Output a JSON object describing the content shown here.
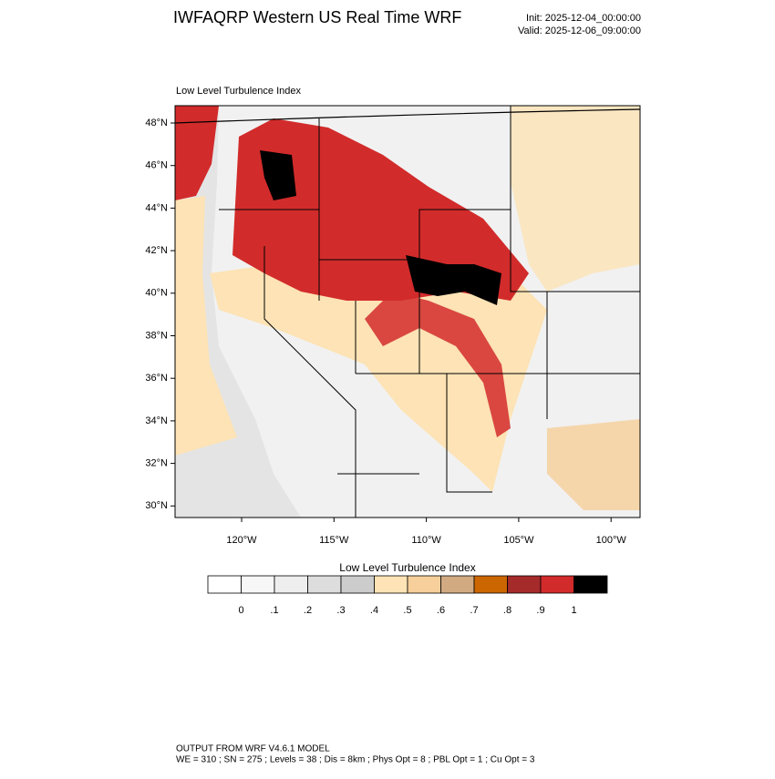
{
  "header": {
    "title": "IWFAQRP Western US Real Time WRF",
    "init": "Init: 2025-12-04_00:00:00",
    "valid": "Valid: 2025-12-06_09:00:00"
  },
  "map": {
    "subtitle": "Low Level Turbulence Index",
    "lat_labels": [
      "48°N",
      "46°N",
      "44°N",
      "42°N",
      "40°N",
      "38°N",
      "36°N",
      "34°N",
      "32°N",
      "30°N"
    ],
    "lon_labels": [
      "120°W",
      "115°W",
      "110°W",
      "105°W",
      "100°W"
    ]
  },
  "colorbar": {
    "title": "Low Level Turbulence Index",
    "colors": [
      "#ffffff",
      "#f7f7f7",
      "#eeeeee",
      "#dddddd",
      "#cccccc",
      "#fde3b5",
      "#f6cf9a",
      "#d2aa82",
      "#cc6600",
      "#a52a2a",
      "#d22b2b",
      "#000000"
    ],
    "labels": [
      "0",
      ".1",
      ".2",
      ".3",
      ".4",
      ".5",
      ".6",
      ".7",
      ".8",
      ".9",
      "1"
    ]
  },
  "footer": {
    "line1": "OUTPUT FROM WRF V4.6.1 MODEL",
    "line2": "WE = 310 ; SN = 275 ; Levels = 38 ; Dis = 8km ; Phys Opt = 8 ; PBL Opt = 1 ; Cu Opt = 3"
  }
}
